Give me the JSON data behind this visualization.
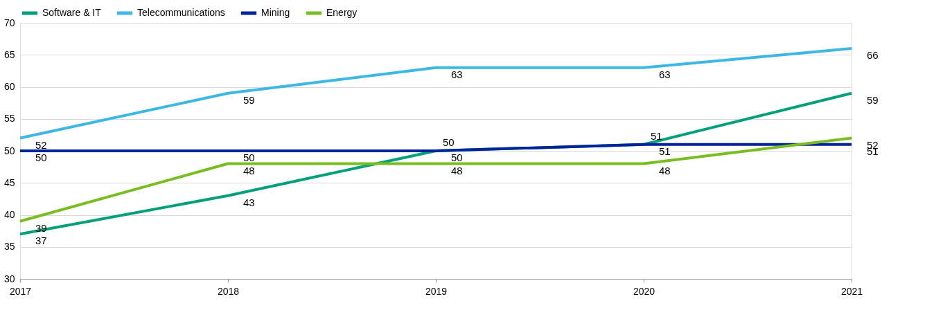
{
  "chart_data": {
    "type": "line",
    "x": [
      2017,
      2018,
      2019,
      2020,
      2021
    ],
    "series": [
      {
        "name": "Software & IT",
        "color": "#00a07a",
        "values": [
          37,
          43,
          50,
          51,
          59
        ]
      },
      {
        "name": "Telecommunications",
        "color": "#3db7e4",
        "values": [
          52,
          59,
          63,
          63,
          66
        ]
      },
      {
        "name": "Mining",
        "color": "#00239c",
        "values": [
          50,
          50,
          50,
          51,
          51
        ]
      },
      {
        "name": "Energy",
        "color": "#78be20",
        "values": [
          39,
          48,
          48,
          48,
          52
        ]
      }
    ],
    "xlim": [
      2017,
      2021
    ],
    "xticks": [
      2017,
      2018,
      2019,
      2020,
      2021
    ],
    "ylim": [
      30,
      70
    ],
    "yticks": [
      30,
      35,
      40,
      45,
      50,
      55,
      60,
      65,
      70
    ],
    "grid": "y",
    "legend": "top left",
    "data_labels": true,
    "marker": "none",
    "line_style": "solid"
  }
}
